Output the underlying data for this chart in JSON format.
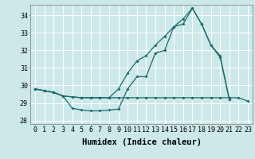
{
  "bg_color": "#cce8e8",
  "grid_color": "#ffffff",
  "line_color": "#1a6b6b",
  "xlabel": "Humidex (Indice chaleur)",
  "xlim": [
    -0.5,
    23.5
  ],
  "ylim": [
    27.8,
    34.6
  ],
  "xticks": [
    0,
    1,
    2,
    3,
    4,
    5,
    6,
    7,
    8,
    9,
    10,
    11,
    12,
    13,
    14,
    15,
    16,
    17,
    18,
    19,
    20,
    21,
    22,
    23
  ],
  "yticks": [
    28,
    29,
    30,
    31,
    32,
    33,
    34
  ],
  "line1_x": [
    0,
    1,
    2,
    3,
    4,
    5,
    6,
    7,
    8,
    9,
    10,
    11,
    12,
    13,
    14,
    15,
    16,
    17,
    18,
    19,
    20,
    21
  ],
  "line1_y": [
    29.8,
    29.7,
    29.6,
    29.4,
    28.7,
    28.6,
    28.55,
    28.55,
    28.6,
    28.65,
    29.8,
    30.5,
    30.5,
    31.85,
    32.0,
    33.35,
    33.5,
    34.4,
    33.5,
    32.3,
    31.6,
    29.2
  ],
  "line2_x": [
    0,
    1,
    2,
    3,
    4,
    5,
    6,
    7,
    8,
    9,
    10,
    11,
    12,
    13,
    14,
    15,
    16,
    17,
    18,
    19,
    20,
    21,
    22,
    23
  ],
  "line2_y": [
    29.8,
    29.7,
    29.6,
    29.4,
    29.35,
    29.3,
    29.3,
    29.3,
    29.3,
    29.3,
    29.3,
    29.3,
    29.3,
    29.3,
    29.3,
    29.3,
    29.3,
    29.3,
    29.3,
    29.3,
    29.3,
    29.3,
    29.3,
    29.1
  ],
  "line3_x": [
    0,
    1,
    2,
    3,
    4,
    5,
    6,
    7,
    8,
    9,
    10,
    11,
    12,
    13,
    14,
    15,
    16,
    17,
    18,
    19,
    20,
    21,
    22,
    23
  ],
  "line3_y": [
    29.8,
    29.7,
    29.6,
    29.4,
    29.35,
    29.3,
    29.3,
    29.3,
    29.3,
    29.8,
    30.7,
    31.4,
    31.7,
    32.3,
    32.8,
    33.35,
    33.8,
    34.4,
    33.5,
    32.3,
    31.7,
    29.2,
    null,
    null
  ],
  "fontsize_tick": 6,
  "fontsize_xlabel": 7.5,
  "marker_size": 2.0,
  "line_width": 0.9
}
